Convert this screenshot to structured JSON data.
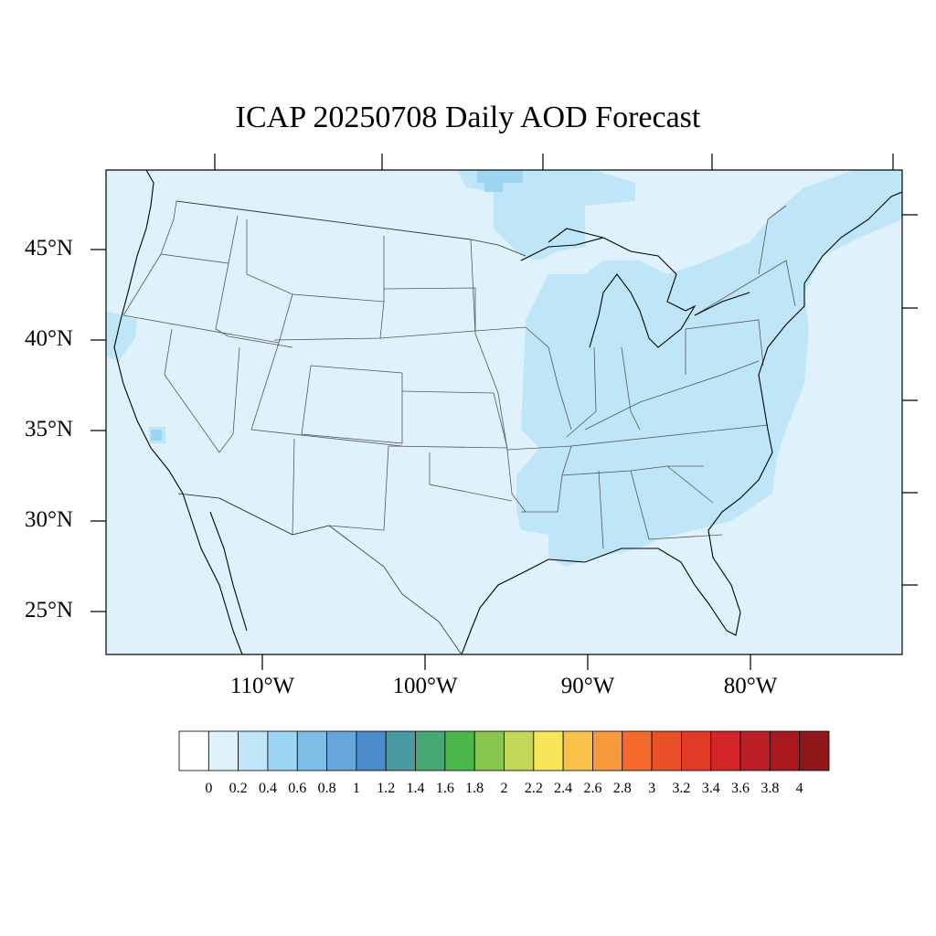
{
  "title": "ICAP 20250708 Daily AOD Forecast",
  "lat_ticks": [
    {
      "label": "45°N",
      "lat": 45
    },
    {
      "label": "40°N",
      "lat": 40
    },
    {
      "label": "35°N",
      "lat": 35
    },
    {
      "label": "30°N",
      "lat": 30
    },
    {
      "label": "25°N",
      "lat": 25
    }
  ],
  "lon_ticks": [
    {
      "label": "110°W",
      "lon": -110
    },
    {
      "label": "100°W",
      "lon": -100
    },
    {
      "label": "90°W",
      "lon": -90
    },
    {
      "label": "80°W",
      "lon": -80
    }
  ],
  "colorbar": {
    "labels": [
      "0",
      "0.2",
      "0.4",
      "0.6",
      "0.8",
      "1",
      "1.2",
      "1.4",
      "1.6",
      "1.8",
      "2",
      "2.2",
      "2.4",
      "2.6",
      "2.8",
      "3",
      "3.2",
      "3.4",
      "3.6",
      "3.8",
      "4"
    ],
    "colors": [
      "#ffffff",
      "#dff2fb",
      "#bfe6f8",
      "#9dd6f3",
      "#7fbde6",
      "#67a6da",
      "#4a8cca",
      "#4a9aa2",
      "#48a873",
      "#4bb74b",
      "#86c54e",
      "#c2d65a",
      "#f7e65a",
      "#f9c04a",
      "#f79a3d",
      "#f46b2d",
      "#ea5129",
      "#df3b26",
      "#d32428",
      "#bc1f25",
      "#a8181c",
      "#8f1619"
    ]
  },
  "field": {
    "background_color": "#dff2fb",
    "elevated_color": "#bfe6f8",
    "peak_color": "#9dd6f3"
  }
}
